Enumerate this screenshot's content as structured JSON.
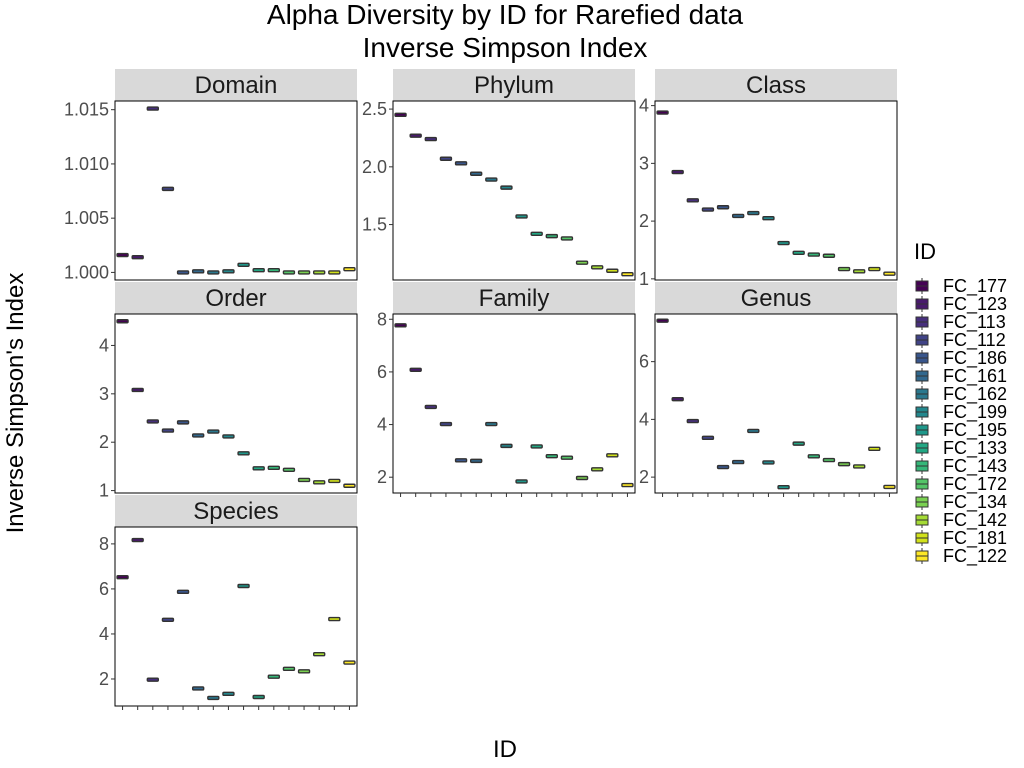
{
  "chart_data": {
    "type": "box",
    "title": "Alpha Diversity by ID for Rarefied data",
    "subtitle": "Inverse Simpson Index",
    "xlabel": "ID",
    "ylabel": "Inverse Simpson's Index",
    "legend": {
      "title": "ID",
      "placement": "right",
      "entries": [
        {
          "label": "FC_177",
          "color": "#440154"
        },
        {
          "label": "FC_123",
          "color": "#481a6c"
        },
        {
          "label": "FC_113",
          "color": "#472f7d"
        },
        {
          "label": "FC_112",
          "color": "#414487"
        },
        {
          "label": "FC_186",
          "color": "#39568c"
        },
        {
          "label": "FC_161",
          "color": "#31688e"
        },
        {
          "label": "FC_162",
          "color": "#2a788e"
        },
        {
          "label": "FC_199",
          "color": "#23888e"
        },
        {
          "label": "FC_195",
          "color": "#1f988b"
        },
        {
          "label": "FC_133",
          "color": "#22a884"
        },
        {
          "label": "FC_143",
          "color": "#35b779"
        },
        {
          "label": "FC_172",
          "color": "#54c568"
        },
        {
          "label": "FC_134",
          "color": "#7ad151"
        },
        {
          "label": "FC_142",
          "color": "#a5db36"
        },
        {
          "label": "FC_181",
          "color": "#d2e21b"
        },
        {
          "label": "FC_122",
          "color": "#fde725"
        }
      ]
    },
    "categories": [
      "FC_177",
      "FC_123",
      "FC_113",
      "FC_112",
      "FC_186",
      "FC_161",
      "FC_162",
      "FC_199",
      "FC_195",
      "FC_133",
      "FC_143",
      "FC_172",
      "FC_134",
      "FC_142",
      "FC_181",
      "FC_122"
    ],
    "panels": [
      {
        "name": "Domain",
        "ylim": [
          0.9993,
          1.0158
        ],
        "ticks": [
          1.0,
          1.005,
          1.01,
          1.015
        ],
        "tick_labels": [
          "1.000",
          "1.005",
          "1.010",
          "1.015"
        ],
        "values": [
          1.0016,
          1.0014,
          1.0151,
          1.0077,
          1.0,
          1.0001,
          1.0,
          1.0001,
          1.0007,
          1.0002,
          1.0002,
          1.0,
          1.0,
          1.0,
          1.0,
          1.0003
        ]
      },
      {
        "name": "Phylum",
        "ylim": [
          1.02,
          2.57
        ],
        "ticks": [
          1.5,
          2.0,
          2.5
        ],
        "tick_labels": [
          "1.5",
          "2.0",
          "2.5"
        ],
        "values": [
          2.45,
          2.27,
          2.24,
          2.07,
          2.03,
          1.94,
          1.89,
          1.82,
          1.57,
          1.42,
          1.4,
          1.38,
          1.17,
          1.13,
          1.1,
          1.07
        ]
      },
      {
        "name": "Class",
        "ylim": [
          0.98,
          4.08
        ],
        "ticks": [
          1,
          2,
          3,
          4
        ],
        "tick_labels": [
          "1",
          "2",
          "3",
          "4"
        ],
        "values": [
          3.88,
          2.85,
          2.36,
          2.2,
          2.24,
          2.09,
          2.14,
          2.05,
          1.62,
          1.45,
          1.42,
          1.4,
          1.17,
          1.13,
          1.17,
          1.09
        ]
      },
      {
        "name": "Order",
        "ylim": [
          0.95,
          4.65
        ],
        "ticks": [
          1,
          2,
          3,
          4
        ],
        "tick_labels": [
          "1",
          "2",
          "3",
          "4"
        ],
        "values": [
          4.5,
          3.08,
          2.43,
          2.24,
          2.41,
          2.14,
          2.22,
          2.12,
          1.77,
          1.46,
          1.47,
          1.43,
          1.22,
          1.17,
          1.2,
          1.1
        ]
      },
      {
        "name": "Family",
        "ylim": [
          1.4,
          8.2
        ],
        "ticks": [
          2,
          4,
          6,
          8
        ],
        "tick_labels": [
          "2",
          "4",
          "6",
          "8"
        ],
        "values": [
          7.77,
          6.08,
          4.67,
          4.02,
          2.64,
          2.62,
          4.02,
          3.19,
          1.84,
          3.17,
          2.8,
          2.74,
          1.97,
          2.3,
          2.83,
          1.7
        ]
      },
      {
        "name": "Genus",
        "ylim": [
          1.45,
          7.65
        ],
        "ticks": [
          2,
          4,
          6
        ],
        "tick_labels": [
          "2",
          "4",
          "6"
        ],
        "values": [
          7.42,
          4.7,
          3.94,
          3.36,
          2.35,
          2.52,
          3.6,
          2.51,
          1.65,
          3.16,
          2.72,
          2.59,
          2.45,
          2.37,
          2.98,
          1.66
        ]
      },
      {
        "name": "Species",
        "ylim": [
          0.8,
          8.75
        ],
        "ticks": [
          2,
          4,
          6,
          8
        ],
        "tick_labels": [
          "2",
          "4",
          "6",
          "8"
        ],
        "values": [
          6.52,
          8.17,
          1.97,
          4.63,
          5.87,
          1.58,
          1.16,
          1.34,
          6.13,
          1.2,
          2.1,
          2.45,
          2.34,
          3.1,
          4.66,
          2.73
        ]
      }
    ]
  }
}
